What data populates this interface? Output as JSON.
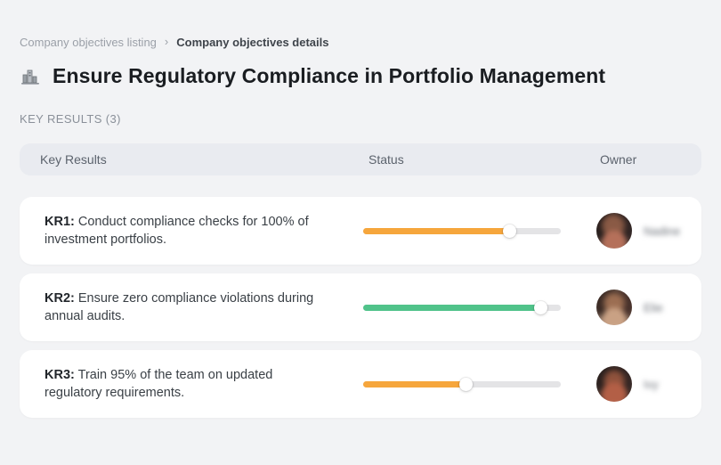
{
  "breadcrumb": {
    "items": [
      {
        "label": "Company objectives listing"
      },
      {
        "label": "Company objectives details"
      }
    ],
    "separator": "›"
  },
  "header": {
    "title": "Ensure Regulatory Compliance in Portfolio Management",
    "icon": "buildings-icon"
  },
  "section": {
    "label": "KEY RESULTS (3)"
  },
  "table": {
    "columns": [
      "Key Results",
      "Status",
      "Owner"
    ],
    "rows": [
      {
        "kr_label": "KR1:",
        "text": "Conduct compliance checks for 100% of investment portfolios.",
        "progress_percent": 74,
        "progress_color": "#F6A63C",
        "owner": "Nadine",
        "owner_blurred": true
      },
      {
        "kr_label": "KR2:",
        "text": "Ensure zero compliance violations during annual audits.",
        "progress_percent": 90,
        "progress_color": "#50C38A",
        "owner": "Elie",
        "owner_blurred": true
      },
      {
        "kr_label": "KR3:",
        "text": "Train 95% of the team on updated regulatory requirements.",
        "progress_percent": 52,
        "progress_color": "#F6A63C",
        "owner": "Ivy",
        "owner_blurred": true
      }
    ]
  },
  "colors": {
    "page_background": "#F2F3F5",
    "card_background": "#FFFFFF",
    "table_header_background": "#E9EBF0",
    "progress_track": "#E4E4E6",
    "progress_orange": "#F6A63C",
    "progress_green": "#50C38A"
  }
}
